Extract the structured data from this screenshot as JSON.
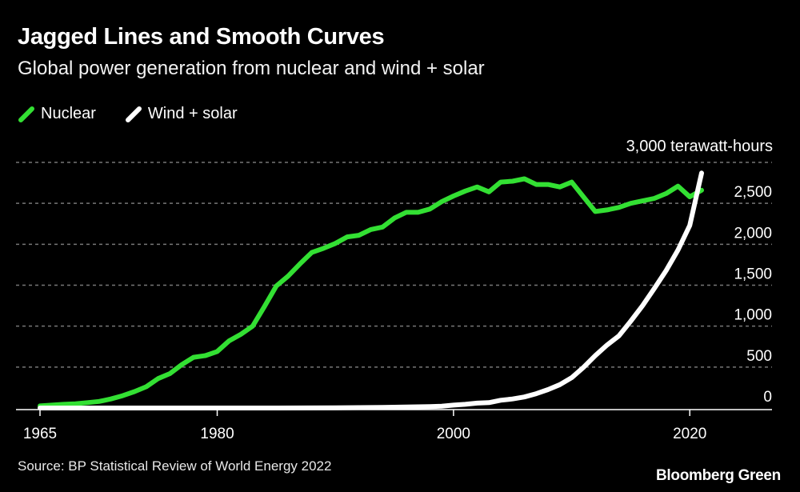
{
  "header": {
    "title": "Jagged Lines and Smooth Curves",
    "subtitle": "Global power generation from nuclear and wind + solar"
  },
  "footer": {
    "source": "Source: BP Statistical Review of World Energy 2022",
    "brand": "Bloomberg Green"
  },
  "colors": {
    "background": "#000000",
    "nuclear": "#33e033",
    "wind_solar": "#ffffff",
    "grid": "#777777"
  },
  "chart_data": {
    "type": "line",
    "unit_label": "3,000 terawatt-hours",
    "ylim": [
      0,
      3000
    ],
    "xlim": [
      1965,
      2021
    ],
    "y_ticks": [
      {
        "value": 0,
        "label": "0"
      },
      {
        "value": 500,
        "label": "500"
      },
      {
        "value": 1000,
        "label": "1,000"
      },
      {
        "value": 1500,
        "label": "1,500"
      },
      {
        "value": 2000,
        "label": "2,000"
      },
      {
        "value": 2500,
        "label": "2,500"
      }
    ],
    "top_gridline": 3000,
    "x_ticks": [
      {
        "value": 1965,
        "label": "1965"
      },
      {
        "value": 1980,
        "label": "1980"
      },
      {
        "value": 2000,
        "label": "2000"
      },
      {
        "value": 2020,
        "label": "2020"
      }
    ],
    "grid": "horizontal dashed",
    "legend_position": "top-left",
    "series": [
      {
        "name": "Nuclear",
        "color": "#33e033",
        "x": [
          1965,
          1966,
          1967,
          1968,
          1969,
          1970,
          1971,
          1972,
          1973,
          1974,
          1975,
          1976,
          1977,
          1978,
          1979,
          1980,
          1981,
          1982,
          1983,
          1984,
          1985,
          1986,
          1987,
          1988,
          1989,
          1990,
          1991,
          1992,
          1993,
          1994,
          1995,
          1996,
          1997,
          1998,
          1999,
          2000,
          2001,
          2002,
          2003,
          2004,
          2005,
          2006,
          2007,
          2008,
          2009,
          2010,
          2011,
          2012,
          2013,
          2014,
          2015,
          2016,
          2017,
          2018,
          2019,
          2020,
          2021
        ],
        "values": [
          25,
          35,
          45,
          52,
          65,
          80,
          110,
          150,
          200,
          260,
          360,
          420,
          530,
          620,
          640,
          690,
          820,
          900,
          1000,
          1240,
          1490,
          1610,
          1760,
          1900,
          1950,
          2010,
          2090,
          2110,
          2180,
          2210,
          2320,
          2390,
          2390,
          2430,
          2520,
          2590,
          2650,
          2700,
          2640,
          2760,
          2770,
          2800,
          2730,
          2730,
          2700,
          2760,
          2580,
          2400,
          2420,
          2450,
          2500,
          2530,
          2560,
          2620,
          2710,
          2580,
          2660
        ]
      },
      {
        "name": "Wind + solar",
        "color": "#ffffff",
        "x": [
          1965,
          1970,
          1975,
          1980,
          1985,
          1990,
          1992,
          1994,
          1996,
          1998,
          1999,
          2000,
          2001,
          2002,
          2003,
          2004,
          2005,
          2006,
          2007,
          2008,
          2009,
          2010,
          2011,
          2012,
          2013,
          2014,
          2015,
          2016,
          2017,
          2018,
          2019,
          2020,
          2021
        ],
        "values": [
          0,
          0,
          0,
          0,
          0,
          3,
          5,
          8,
          12,
          18,
          22,
          35,
          45,
          60,
          65,
          95,
          110,
          135,
          175,
          225,
          285,
          370,
          495,
          640,
          770,
          880,
          1060,
          1250,
          1460,
          1680,
          1930,
          2230,
          2870
        ]
      }
    ]
  }
}
